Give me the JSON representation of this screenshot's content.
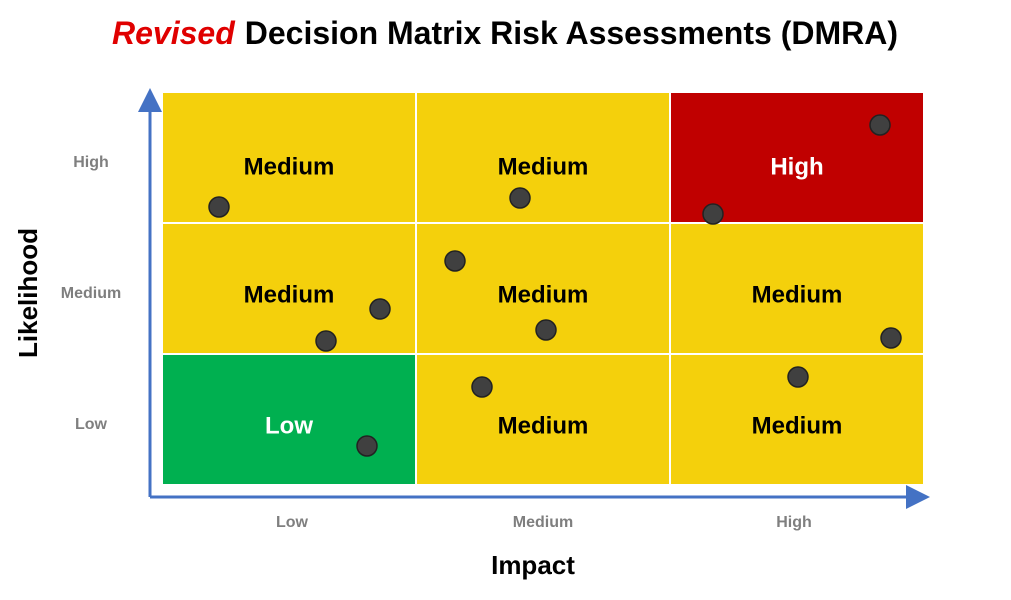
{
  "title": {
    "emphasis": "Revised",
    "text": "Decision Matrix Risk Assessments (DMRA)"
  },
  "y_axis": {
    "label": "Likelihood",
    "ticks": [
      "High",
      "Medium",
      "Low"
    ]
  },
  "x_axis": {
    "label": "Impact",
    "ticks": [
      "Low",
      "Medium",
      "High"
    ]
  },
  "cells": [
    [
      "Medium",
      "Medium",
      "High"
    ],
    [
      "Medium",
      "Medium",
      "Medium"
    ],
    [
      "Low",
      "Medium",
      "Medium"
    ]
  ]
}
